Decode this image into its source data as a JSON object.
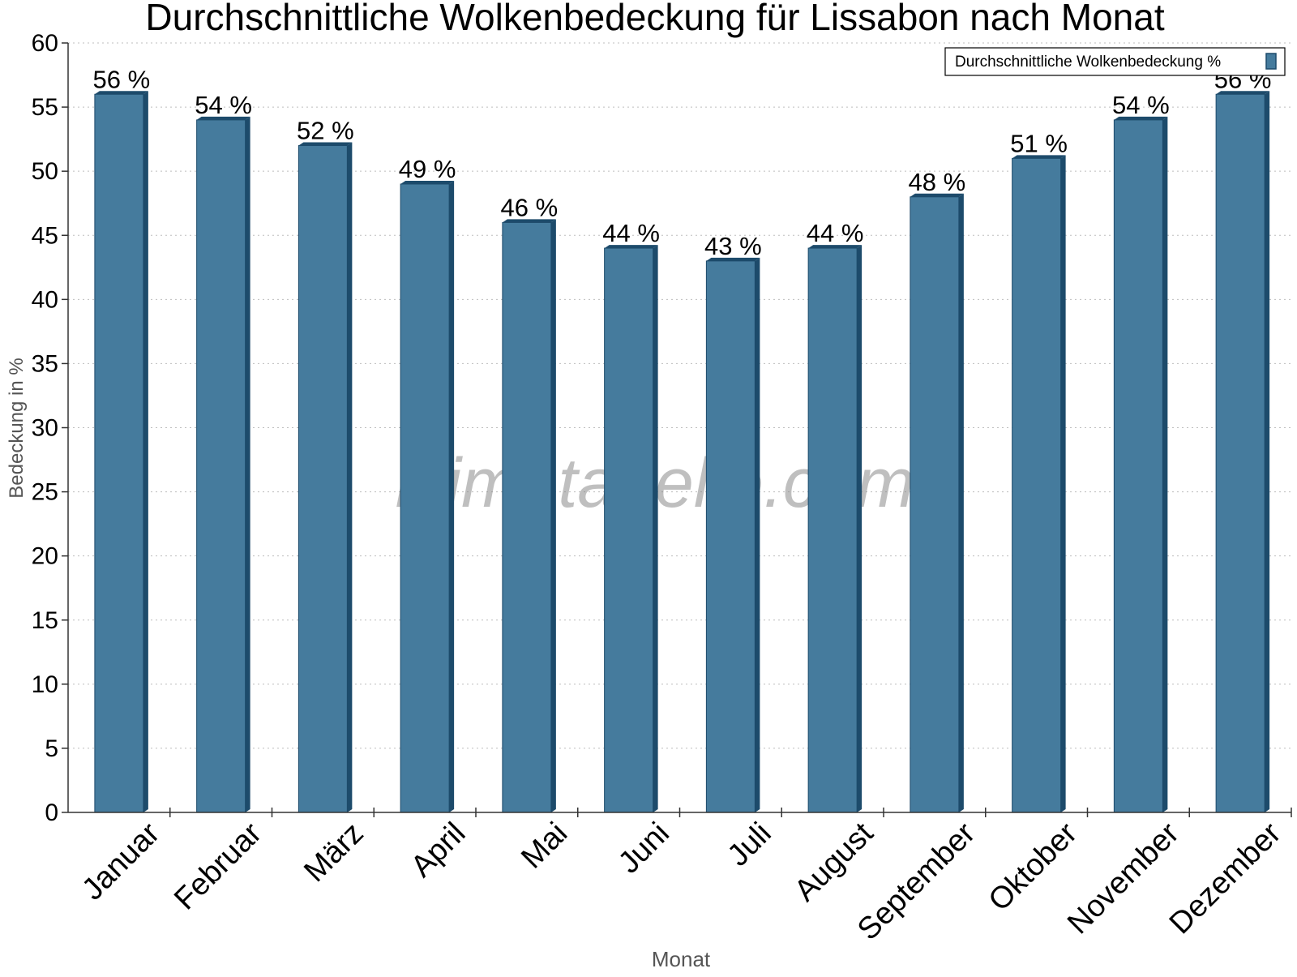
{
  "chart_data": {
    "type": "bar",
    "title": "Durchschnittliche Wolkenbedeckung für Lissabon nach Monat",
    "xlabel": "Monat",
    "ylabel": "Bedeckung in %",
    "categories": [
      "Januar",
      "Februar",
      "März",
      "April",
      "Mai",
      "Juni",
      "Juli",
      "August",
      "September",
      "Oktober",
      "November",
      "Dezember"
    ],
    "series": [
      {
        "name": "Durchschnittliche Wolkenbedeckung %",
        "values": [
          56,
          54,
          52,
          49,
          46,
          44,
          43,
          44,
          48,
          51,
          54,
          56
        ],
        "value_labels": [
          "56 %",
          "54 %",
          "52 %",
          "49 %",
          "46 %",
          "44 %",
          "43 %",
          "44 %",
          "48 %",
          "51 %",
          "54 %",
          "56 %"
        ],
        "color": "#457b9d",
        "side_color": "#1d4b6b"
      }
    ],
    "ylim": [
      0,
      60
    ],
    "yticks": [
      0,
      5,
      10,
      15,
      20,
      25,
      30,
      35,
      40,
      45,
      50,
      55,
      60
    ],
    "grid": true,
    "legend_position": "top-right",
    "watermark": "klimatabelle.com"
  }
}
